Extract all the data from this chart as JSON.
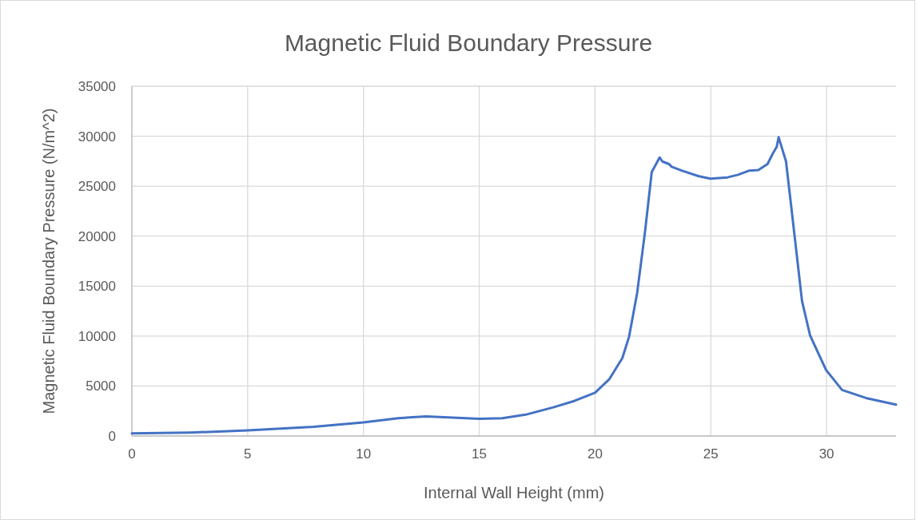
{
  "chart_data": {
    "type": "line",
    "title": "Magnetic Fluid Boundary Pressure",
    "xlabel": "Internal Wall Height (mm)",
    "ylabel": "Magnetic Fluid Boundary Pressure (N/m^2)",
    "x": [
      0,
      2.5,
      5,
      7.85,
      10,
      11.5,
      12.7,
      15,
      16,
      17,
      18.2,
      19.1,
      20,
      20.61,
      21.18,
      21.47,
      21.82,
      22.16,
      22.45,
      22.79,
      22.91,
      23.2,
      23.31,
      23.77,
      24.46,
      24.98,
      25.72,
      26.18,
      26.64,
      27.05,
      27.45,
      27.68,
      27.85,
      27.93,
      28.25,
      28.6,
      28.94,
      29.29,
      29.98,
      30.67,
      31.7,
      33
    ],
    "series": [
      {
        "color": "#4472c4",
        "values": [
          250,
          340,
          550,
          920,
          1350,
          1780,
          1950,
          1720,
          1780,
          2130,
          2870,
          3500,
          4330,
          5660,
          7790,
          9920,
          14310,
          20430,
          26410,
          27870,
          27470,
          27210,
          26940,
          26540,
          26010,
          25750,
          25880,
          26140,
          26540,
          26600,
          27210,
          28270,
          28940,
          29900,
          27470,
          20430,
          13510,
          10050,
          6600,
          4600,
          3800,
          3140
        ]
      }
    ],
    "xlim": [
      0,
      33
    ],
    "xticks": [
      0,
      5,
      10,
      15,
      20,
      25,
      30
    ],
    "ylim": [
      0,
      35000
    ],
    "yticks": [
      0,
      5000,
      10000,
      15000,
      20000,
      25000,
      30000,
      35000
    ],
    "grid": true,
    "marker": "none",
    "line_style": "solid"
  }
}
